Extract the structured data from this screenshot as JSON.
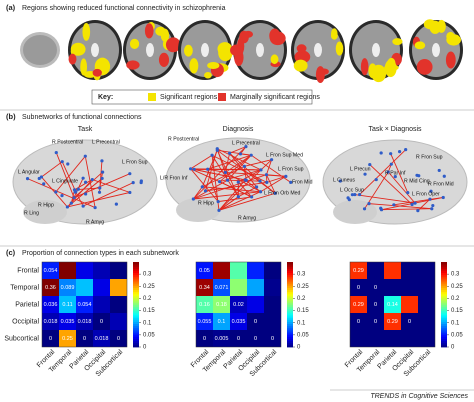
{
  "panel_a": {
    "label": "(a)",
    "title": "Regions showing reduced functional connectivity in schizophrenia",
    "key": {
      "heading": "Key:",
      "items": [
        {
          "name": "Significant regions",
          "color": "#f4e400"
        },
        {
          "name": "Marginally significant regions",
          "color": "#e2332b"
        }
      ]
    }
  },
  "panel_b": {
    "label": "(b)",
    "title": "Subnetworks of functional connections",
    "brains": [
      {
        "title": "Task",
        "labels": [
          "R Postcentral",
          "L Precentral",
          "L Fron Sup",
          "L Angular",
          "L Cingulate",
          "R Hipp",
          "R Ling",
          "R Amyg"
        ]
      },
      {
        "title": "Diagnosis",
        "labels": [
          "R Postcentral",
          "L Precentral",
          "L Fron Sup Med",
          "L/R Fron Inf",
          "L Fron Sup",
          "Fron Mid",
          "L Fron Orb Med",
          "R Hipp",
          "R Amyg"
        ]
      },
      {
        "title": "Task × Diagnosis",
        "labels": [
          "R Fron Sup",
          "L Precun",
          "R Par Inf",
          "L Cuneus",
          "L Occ Sup",
          "R Mid Cing",
          "R Fron Mid",
          "L Fron Oper"
        ]
      }
    ]
  },
  "panel_c": {
    "label": "(c)",
    "title": "Proportion of connection types in each subnetwork",
    "rows": [
      "Frontal",
      "Temporal",
      "Parietal",
      "Occipital",
      "Subcortical"
    ],
    "columns": [
      "Frontal",
      "Temporal",
      "Parietal",
      "Occipital",
      "Subcortical"
    ],
    "clim": [
      0,
      0.35
    ],
    "ticks": [
      0,
      0.05,
      0.1,
      0.15,
      0.2,
      0.25,
      0.3
    ],
    "matrices": [
      {
        "values": [
          [
            0.054
          ],
          [
            0.36,
            0.089
          ],
          [
            0.036,
            0.11,
            0.054
          ],
          [
            0.018,
            0.035,
            0.018,
            0
          ],
          [
            0,
            0.25,
            0,
            0.018,
            0
          ]
        ]
      },
      {
        "values": [
          [
            0.05
          ],
          [
            0.34,
            0.071
          ],
          [
            0.16,
            0.18,
            0.02
          ],
          [
            0.055,
            0.1,
            0.035,
            0
          ],
          [
            0,
            0.005,
            0,
            0,
            0
          ]
        ]
      },
      {
        "values": [
          [
            0.29
          ],
          [
            0,
            0
          ],
          [
            0.29,
            0,
            0.14
          ],
          [
            0,
            0,
            0.29,
            0
          ],
          [
            0,
            0,
            0,
            0,
            0
          ]
        ]
      }
    ]
  },
  "footer": "TRENDS in Cognitive Sciences"
}
